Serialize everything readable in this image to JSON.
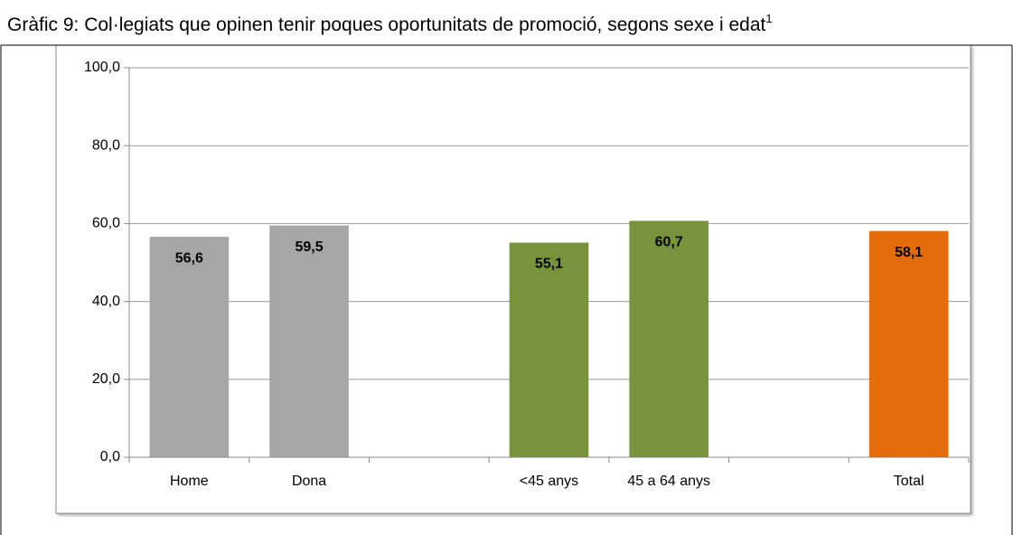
{
  "chart_data": {
    "type": "bar",
    "title": "Gràfic 9: Col·legiats que opinen tenir poques oportunitats de promoció, segons sexe i edat",
    "title_note": "1",
    "categories": [
      "Home",
      "Dona",
      null,
      "<45 anys",
      "45 a 64 anys",
      null,
      "Total"
    ],
    "values": [
      56.6,
      59.5,
      null,
      55.1,
      60.7,
      null,
      58.1
    ],
    "value_labels": [
      "56,6",
      "59,5",
      null,
      "55,1",
      "60,7",
      null,
      "58,1"
    ],
    "colors": [
      "#a6a6a6",
      "#a6a6a6",
      null,
      "#77933c",
      "#77933c",
      null,
      "#e46c0a"
    ],
    "ylim": [
      0,
      100
    ],
    "yticks": [
      {
        "value": 0,
        "label": "0,0"
      },
      {
        "value": 20,
        "label": "20,0"
      },
      {
        "value": 40,
        "label": "40,0"
      },
      {
        "value": 60,
        "label": "60,0"
      },
      {
        "value": 80,
        "label": "80,0"
      },
      {
        "value": 100,
        "label": "100,0"
      }
    ],
    "grid": true
  }
}
